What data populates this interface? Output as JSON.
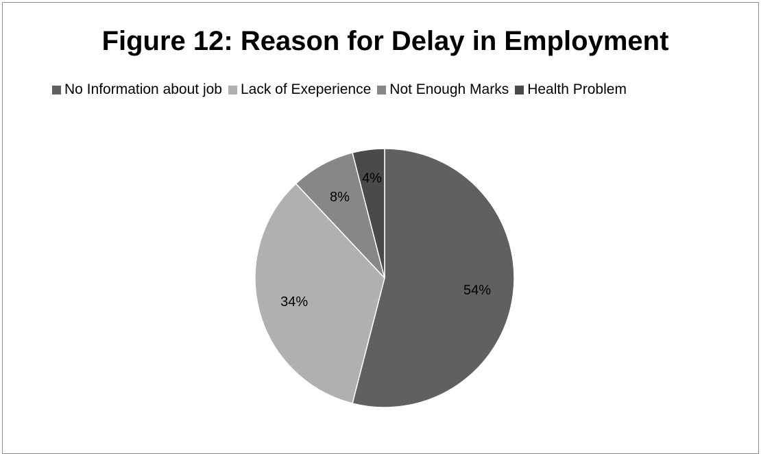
{
  "chart_data": {
    "type": "pie",
    "title": "Figure 12: Reason for Delay in Employment",
    "legend_position": "top",
    "categories": [
      "No Information about job",
      "Lack of Exeperience",
      "Not Enough Marks",
      "Health Problem"
    ],
    "values": [
      54,
      34,
      8,
      4
    ],
    "data_labels": [
      "54%",
      "34%",
      "8%",
      "4%"
    ],
    "colors": [
      "#606060",
      "#b0b0b0",
      "#878787",
      "#4a4a4a"
    ]
  }
}
